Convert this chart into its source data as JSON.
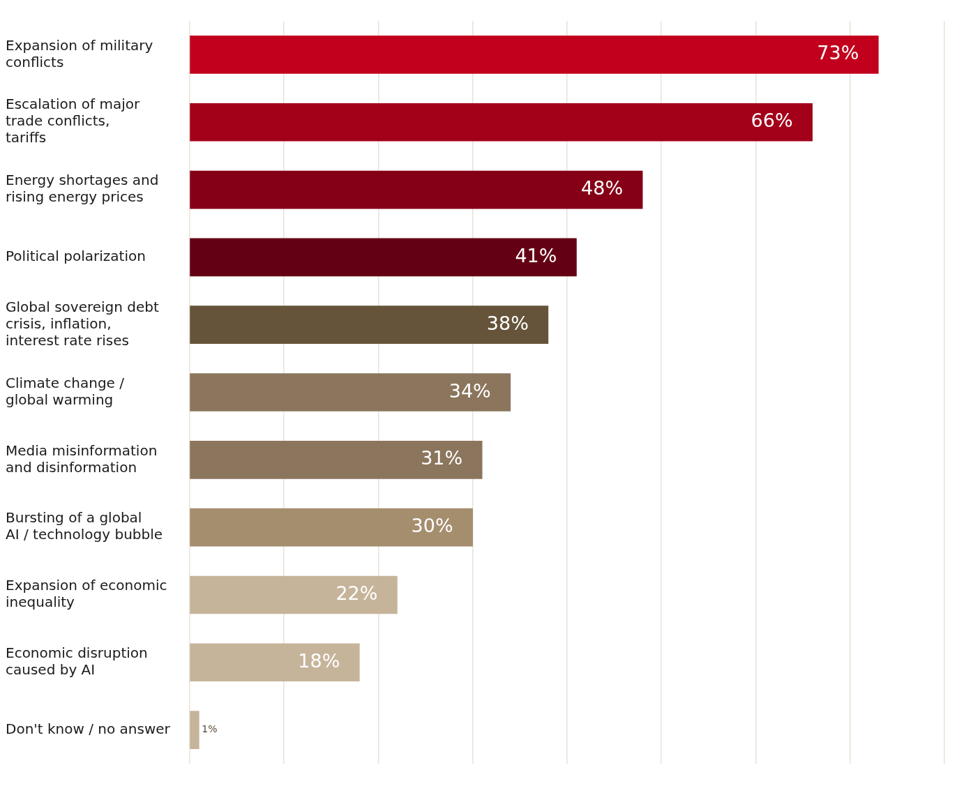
{
  "chart_data": {
    "type": "bar",
    "orientation": "horizontal",
    "categories": [
      "Expansion of military conflicts",
      "Escalation of major trade conflicts, tariffs",
      "Energy shortages and rising energy prices",
      "Political polarization",
      "Global sovereign debt crisis, inflation, interest rate rises",
      "Climate change / global warming",
      "Media misinformation and disinformation",
      "Bursting of a global AI / technology bubble",
      "Expansion of economic inequality",
      "Economic disruption caused by AI",
      "Don't know / no answer"
    ],
    "values": [
      73,
      66,
      48,
      41,
      38,
      34,
      31,
      30,
      22,
      18,
      1
    ],
    "colors": [
      "#c2001e",
      "#a30019",
      "#850017",
      "#640014",
      "#655439",
      "#8b755c",
      "#8b755c",
      "#a58e6e",
      "#c6b49a",
      "#c6b49a",
      "#c6b49a"
    ],
    "value_labels": [
      "73%",
      "66%",
      "48%",
      "41%",
      "38%",
      "34%",
      "31%",
      "30%",
      "22%",
      "18%",
      "1%"
    ],
    "grid": "x",
    "tick_labels": "y",
    "legend": false
  }
}
